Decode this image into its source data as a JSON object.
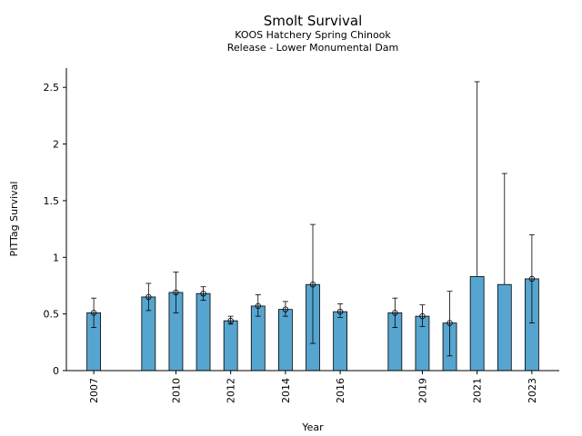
{
  "chart_data": {
    "type": "bar",
    "title": "Smolt Survival",
    "subtitle_lines": [
      "KOOS Hatchery Spring Chinook",
      "Release - Lower Monumental Dam"
    ],
    "xlabel": "Year",
    "ylabel": "PITTag Survival",
    "ylim": [
      0,
      2.67
    ],
    "yticks": [
      0,
      0.5,
      1,
      1.5,
      2,
      2.5
    ],
    "ytick_labels": [
      "0",
      "0.5",
      "1",
      "1.5",
      "2",
      "2.5"
    ],
    "xticks": [
      2007,
      2010,
      2012,
      2014,
      2016,
      2019,
      2021,
      2023
    ],
    "x_range": [
      2006,
      2024
    ],
    "bar_color": "#56a5d0",
    "series": [
      {
        "x": [
          2007,
          2009,
          2010,
          2011,
          2012,
          2013,
          2014,
          2015,
          2016,
          2018,
          2019,
          2020,
          2021,
          2022,
          2023
        ],
        "values": [
          0.51,
          0.65,
          0.69,
          0.68,
          0.44,
          0.57,
          0.54,
          0.76,
          0.52,
          0.51,
          0.48,
          0.42,
          0.83,
          0.76,
          0.81
        ],
        "err_low": [
          0.38,
          0.53,
          0.51,
          0.62,
          0.41,
          0.48,
          0.48,
          0.24,
          0.47,
          0.38,
          0.39,
          0.13,
          null,
          null,
          0.42
        ],
        "err_high": [
          0.64,
          0.77,
          0.87,
          0.74,
          0.48,
          0.67,
          0.61,
          1.29,
          0.59,
          0.64,
          0.58,
          0.7,
          2.55,
          1.74,
          1.2
        ],
        "marker": [
          true,
          true,
          true,
          true,
          true,
          true,
          true,
          true,
          true,
          true,
          true,
          true,
          false,
          false,
          true
        ]
      }
    ]
  }
}
